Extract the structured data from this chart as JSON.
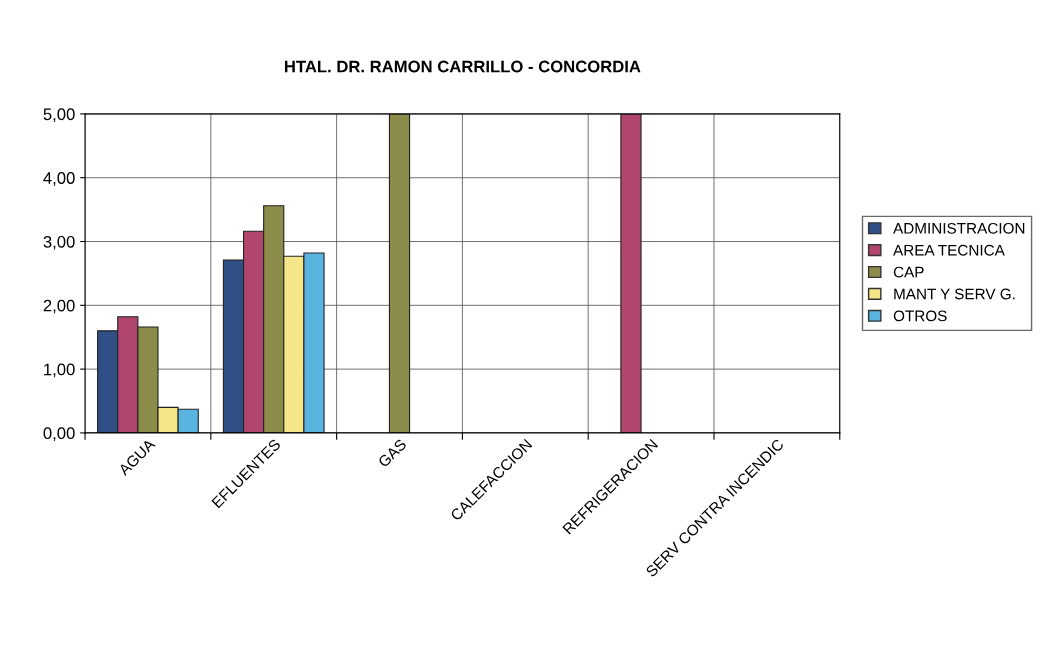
{
  "chart_data": {
    "type": "bar",
    "title": "HTAL. DR. RAMON CARRILLO - CONCORDIA",
    "categories": [
      "AGUA",
      "EFLUENTES",
      "GAS",
      "CALEFACCION",
      "REFRIGERACION",
      "SERV CONTRA INCENDIC"
    ],
    "series": [
      {
        "name": "ADMINISTRACION",
        "color": "#2f4f86",
        "values": [
          1.6,
          2.71,
          null,
          null,
          null,
          null
        ]
      },
      {
        "name": "AREA TECNICA",
        "color": "#b0466e",
        "values": [
          1.82,
          3.16,
          null,
          null,
          5.0,
          null
        ]
      },
      {
        "name": "CAP",
        "color": "#8c8c4a",
        "values": [
          1.66,
          3.56,
          5.0,
          null,
          null,
          null
        ]
      },
      {
        "name": "MANT Y SERV G.",
        "color": "#f5e68a",
        "values": [
          0.4,
          2.77,
          null,
          null,
          null,
          null
        ]
      },
      {
        "name": "OTROS",
        "color": "#5ab4e0",
        "values": [
          0.37,
          2.82,
          null,
          null,
          null,
          null
        ]
      }
    ],
    "ylim": [
      0,
      5
    ],
    "yticks": [
      {
        "value": 0,
        "label": "0,00"
      },
      {
        "value": 1,
        "label": "1,00"
      },
      {
        "value": 2,
        "label": "2,00"
      },
      {
        "value": 3,
        "label": "3,00"
      },
      {
        "value": 4,
        "label": "4,00"
      },
      {
        "value": 5,
        "label": "5,00"
      }
    ],
    "grid": true,
    "legend": "right"
  }
}
